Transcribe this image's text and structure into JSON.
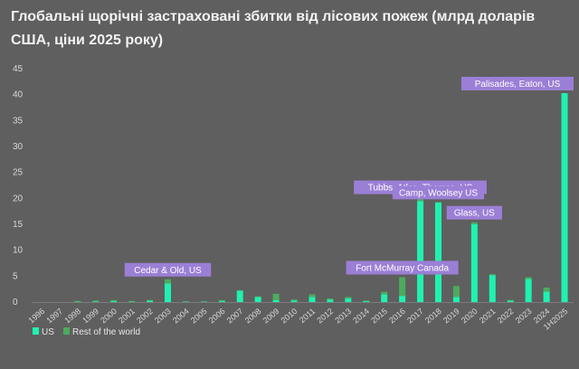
{
  "chart_data": {
    "type": "bar",
    "stacked": true,
    "title": "Глобальні щорічні застраховані збитки від лісових пожеж (млрд доларів США, ціни 2025 року)",
    "xlabel": "",
    "ylabel": "",
    "ylim": [
      0,
      45
    ],
    "yticks": [
      0,
      5,
      10,
      15,
      20,
      25,
      30,
      35,
      40,
      45
    ],
    "grid": false,
    "legend_position": "bottom-left",
    "categories": [
      "1996",
      "1997",
      "1998",
      "1999",
      "2000",
      "2001",
      "2002",
      "2003",
      "2004",
      "2005",
      "2006",
      "2007",
      "2008",
      "2009",
      "2010",
      "2011",
      "2012",
      "2013",
      "2014",
      "2015",
      "2016",
      "2017",
      "2018",
      "2019",
      "2020",
      "2021",
      "2022",
      "2023",
      "2024",
      "1H2025"
    ],
    "series": [
      {
        "name": "US",
        "color": "#1ff2b0",
        "values": [
          0,
          0,
          0.1,
          0.1,
          0.2,
          0.1,
          0.3,
          3.6,
          0.1,
          0.1,
          0.2,
          2.2,
          1.0,
          0.4,
          0.3,
          1.0,
          0.5,
          0.7,
          0.2,
          1.5,
          1.2,
          19.5,
          19.2,
          1.0,
          15.0,
          5.2,
          0.3,
          4.5,
          2.0,
          40.3
        ]
      },
      {
        "name": "Rest of the world",
        "color": "#4cab5c",
        "values": [
          0,
          0,
          0.1,
          0.2,
          0.2,
          0.1,
          0.1,
          0.8,
          0,
          0,
          0.2,
          0.1,
          0.1,
          1.2,
          0.2,
          0.5,
          0.2,
          0.3,
          0.1,
          0.5,
          3.6,
          0.8,
          0.1,
          2.1,
          0.4,
          0.2,
          0.1,
          0.3,
          0.8,
          0
        ]
      }
    ],
    "annotations": [
      {
        "category": "2003",
        "text": "Cedar & Old, US"
      },
      {
        "category": "2016",
        "text": "Fort McMurray Canada"
      },
      {
        "category": "2017",
        "text": "Tubbs, Atlas, Thomas, US"
      },
      {
        "category": "2018",
        "text": "Camp, Woolsey US"
      },
      {
        "category": "2020",
        "text": "Glass, US"
      },
      {
        "category": "1H2025",
        "text": "Palisades, Eaton, US"
      }
    ],
    "annotation_color": "#9b7fd6"
  }
}
